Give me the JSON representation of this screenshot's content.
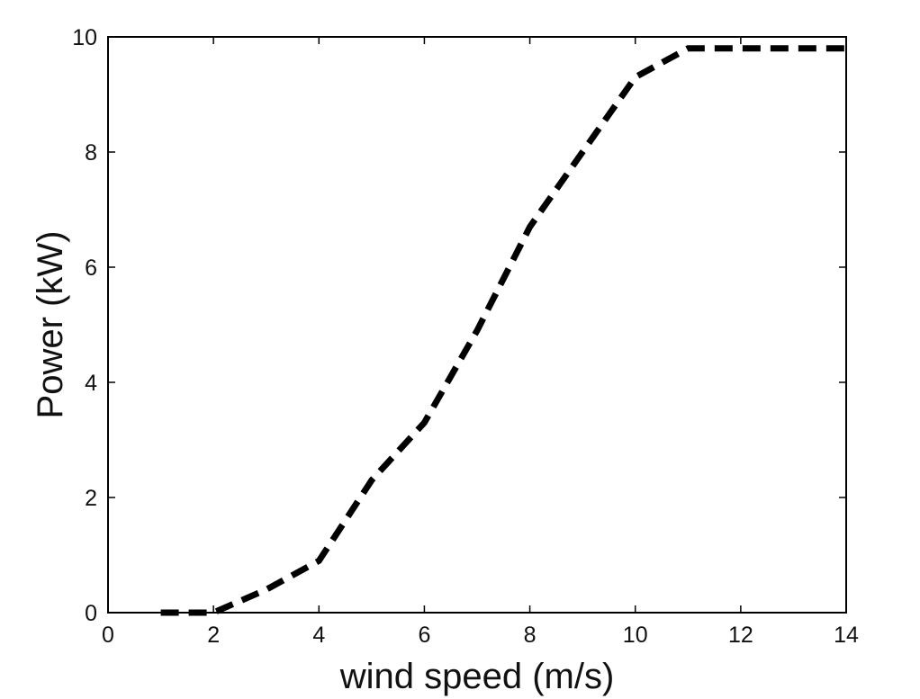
{
  "chart_data": {
    "type": "line",
    "title": "",
    "xlabel": "wind speed (m/s)",
    "ylabel": "Power (kW)",
    "xlim": [
      0,
      14
    ],
    "ylim": [
      0,
      10
    ],
    "xticks": [
      0,
      2,
      4,
      6,
      8,
      10,
      12,
      14
    ],
    "yticks": [
      0,
      2,
      4,
      6,
      8,
      10
    ],
    "grid": false,
    "legend": "none",
    "series": [
      {
        "line_style": "dashed",
        "color": "#000000",
        "x": [
          1,
          2,
          3,
          4,
          5,
          6,
          7,
          8,
          9,
          10,
          11,
          12,
          13,
          14
        ],
        "y": [
          0,
          0,
          0.4,
          0.9,
          2.3,
          3.3,
          4.9,
          6.7,
          8.0,
          9.3,
          9.8,
          9.8,
          9.8,
          9.8
        ]
      }
    ]
  }
}
